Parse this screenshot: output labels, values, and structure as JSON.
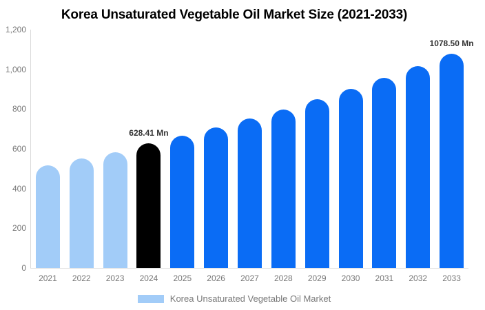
{
  "title": "Korea Unsaturated Vegetable Oil Market Size (2021-2033)",
  "chart_data": {
    "type": "bar",
    "title": "Korea Unsaturated Vegetable Oil Market Size (2021-2033)",
    "categories": [
      "2021",
      "2022",
      "2023",
      "2024",
      "2025",
      "2026",
      "2027",
      "2028",
      "2029",
      "2030",
      "2031",
      "2032",
      "2033"
    ],
    "values": [
      517,
      551,
      581,
      628.41,
      667,
      708,
      752,
      799,
      848,
      901,
      956,
      1015,
      1078.5
    ],
    "unit": "Mn",
    "xlabel": "",
    "ylabel": "",
    "ylim": [
      0,
      1200
    ],
    "ytick_values": [
      0,
      200,
      400,
      600,
      800,
      1000,
      1200
    ],
    "ytick_labels": [
      "0",
      "200",
      "400",
      "600",
      "800",
      "1,000",
      "1,200"
    ],
    "grid": false,
    "legend_position": "bottom",
    "bar_roles": [
      "historical",
      "historical",
      "historical",
      "base_year",
      "forecast",
      "forecast",
      "forecast",
      "forecast",
      "forecast",
      "forecast",
      "forecast",
      "forecast",
      "forecast"
    ],
    "palette": {
      "historical": "#A2CCF8",
      "base_year": "#000000",
      "forecast": "#0A6CF5"
    },
    "annotations": [
      {
        "category": "2024",
        "text": "628.41 Mn"
      },
      {
        "category": "2033",
        "text": "1078.50 Mn"
      }
    ]
  },
  "legend": {
    "label": "Korea Unsaturated Vegetable Oil Market",
    "swatch_color": "#A2CCF8"
  },
  "colors": {
    "axis_line": "#d9d9d9",
    "tick_text": "#777777",
    "annotation_text": "#333333",
    "title_text": "#000000",
    "background": "#ffffff"
  }
}
